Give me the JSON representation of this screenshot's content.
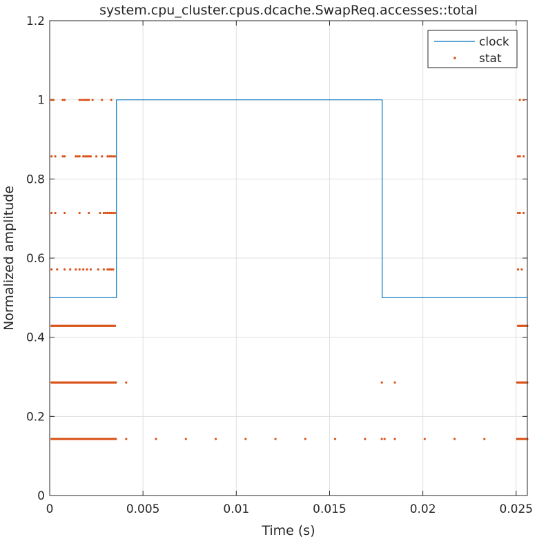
{
  "chart_data": {
    "type": "line",
    "title": "system.cpu_cluster.cpus.dcache.SwapReq.accesses::total",
    "xlabel": "Time (s)",
    "ylabel": "Normalized amplitude",
    "xlim": [
      0,
      0.0256
    ],
    "ylim": [
      0,
      1.2
    ],
    "x_ticks": [
      0,
      0.005,
      0.01,
      0.015,
      0.02,
      0.025
    ],
    "x_tick_labels": [
      "0",
      "0.005",
      "0.01",
      "0.015",
      "0.02",
      "0.025"
    ],
    "y_ticks": [
      0,
      0.2,
      0.4,
      0.6,
      0.8,
      1,
      1.2
    ],
    "y_tick_labels": [
      "0",
      "0.2",
      "0.4",
      "0.6",
      "0.8",
      "1",
      "1.2"
    ],
    "grid": true,
    "legend_position": "top-right",
    "colors": {
      "clock": "#0072BD",
      "stat": "#D95319"
    },
    "series": [
      {
        "name": "clock",
        "style": "step-line",
        "x": [
          0,
          0.00358,
          0.00358,
          0.01782,
          0.01782,
          0.0256
        ],
        "y": [
          0.5,
          0.5,
          1.0,
          1.0,
          0.5,
          0.5
        ]
      },
      {
        "name": "stat",
        "style": "dots",
        "runs": [
          {
            "y": 0.1429,
            "x_start": 0.0001,
            "x_end": 0.00355,
            "step": 5e-05
          },
          {
            "y": 0.1429,
            "x_start": 0.02505,
            "x_end": 0.0256,
            "step": 5e-05
          },
          {
            "y": 0.2857,
            "x_start": 0.0001,
            "x_end": 0.00355,
            "step": 5e-05
          },
          {
            "y": 0.2857,
            "x_start": 0.02505,
            "x_end": 0.0256,
            "step": 5e-05
          },
          {
            "y": 0.4286,
            "x_start": 0.0001,
            "x_end": 0.0035,
            "step": 5e-05
          },
          {
            "y": 0.4286,
            "x_start": 0.0251,
            "x_end": 0.0256,
            "step": 5e-05
          }
        ],
        "points": [
          [
            0.0041,
            0.1429
          ],
          [
            0.0057,
            0.1429
          ],
          [
            0.0073,
            0.1429
          ],
          [
            0.0089,
            0.1429
          ],
          [
            0.0105,
            0.1429
          ],
          [
            0.0121,
            0.1429
          ],
          [
            0.0137,
            0.1429
          ],
          [
            0.0153,
            0.1429
          ],
          [
            0.0169,
            0.1429
          ],
          [
            0.0178,
            0.1429
          ],
          [
            0.01795,
            0.1429
          ],
          [
            0.0185,
            0.1429
          ],
          [
            0.0201,
            0.1429
          ],
          [
            0.0217,
            0.1429
          ],
          [
            0.0233,
            0.1429
          ],
          [
            0.0041,
            0.2857
          ],
          [
            0.0178,
            0.2857
          ],
          [
            0.0185,
            0.2857
          ],
          [
            0.0001,
            0.5714
          ],
          [
            0.0004,
            0.5714
          ],
          [
            0.0008,
            0.5714
          ],
          [
            0.0011,
            0.5714
          ],
          [
            0.0014,
            0.5714
          ],
          [
            0.0016,
            0.5714
          ],
          [
            0.0018,
            0.5714
          ],
          [
            0.002,
            0.5714
          ],
          [
            0.0022,
            0.5714
          ],
          [
            0.0026,
            0.5714
          ],
          [
            0.0029,
            0.5714
          ],
          [
            0.0031,
            0.5714
          ],
          [
            0.0032,
            0.5714
          ],
          [
            0.0033,
            0.5714
          ],
          [
            0.0034,
            0.5714
          ],
          [
            0.0251,
            0.5714
          ],
          [
            0.0253,
            0.5714
          ],
          [
            0.0001,
            0.7143
          ],
          [
            0.0003,
            0.7143
          ],
          [
            0.0008,
            0.7143
          ],
          [
            0.0016,
            0.7143
          ],
          [
            0.0021,
            0.7143
          ],
          [
            0.0027,
            0.7143
          ],
          [
            0.0029,
            0.7143
          ],
          [
            0.003,
            0.7143
          ],
          [
            0.0031,
            0.7143
          ],
          [
            0.0032,
            0.7143
          ],
          [
            0.0033,
            0.7143
          ],
          [
            0.0034,
            0.7143
          ],
          [
            0.0035,
            0.7143
          ],
          [
            0.0251,
            0.7143
          ],
          [
            0.0252,
            0.7143
          ],
          [
            0.0254,
            0.7143
          ],
          [
            0.0001,
            0.8571
          ],
          [
            0.0003,
            0.8571
          ],
          [
            0.0007,
            0.8571
          ],
          [
            0.0008,
            0.8571
          ],
          [
            0.0014,
            0.8571
          ],
          [
            0.0015,
            0.8571
          ],
          [
            0.0016,
            0.8571
          ],
          [
            0.0018,
            0.8571
          ],
          [
            0.0019,
            0.8571
          ],
          [
            0.002,
            0.8571
          ],
          [
            0.0021,
            0.8571
          ],
          [
            0.0022,
            0.8571
          ],
          [
            0.0025,
            0.8571
          ],
          [
            0.0028,
            0.8571
          ],
          [
            0.0031,
            0.8571
          ],
          [
            0.0032,
            0.8571
          ],
          [
            0.0033,
            0.8571
          ],
          [
            0.0034,
            0.8571
          ],
          [
            0.0035,
            0.8571
          ],
          [
            0.0251,
            0.8571
          ],
          [
            0.0252,
            0.8571
          ],
          [
            0.0254,
            0.8571
          ],
          [
            0.0001,
            1.0
          ],
          [
            0.0002,
            1.0
          ],
          [
            0.0007,
            1.0
          ],
          [
            0.0008,
            1.0
          ],
          [
            0.0016,
            1.0
          ],
          [
            0.0017,
            1.0
          ],
          [
            0.0018,
            1.0
          ],
          [
            0.0019,
            1.0
          ],
          [
            0.002,
            1.0
          ],
          [
            0.0021,
            1.0
          ],
          [
            0.0023,
            1.0
          ],
          [
            0.0028,
            1.0
          ],
          [
            0.0033,
            1.0
          ],
          [
            0.0252,
            1.0
          ],
          [
            0.0254,
            1.0
          ]
        ]
      }
    ]
  }
}
